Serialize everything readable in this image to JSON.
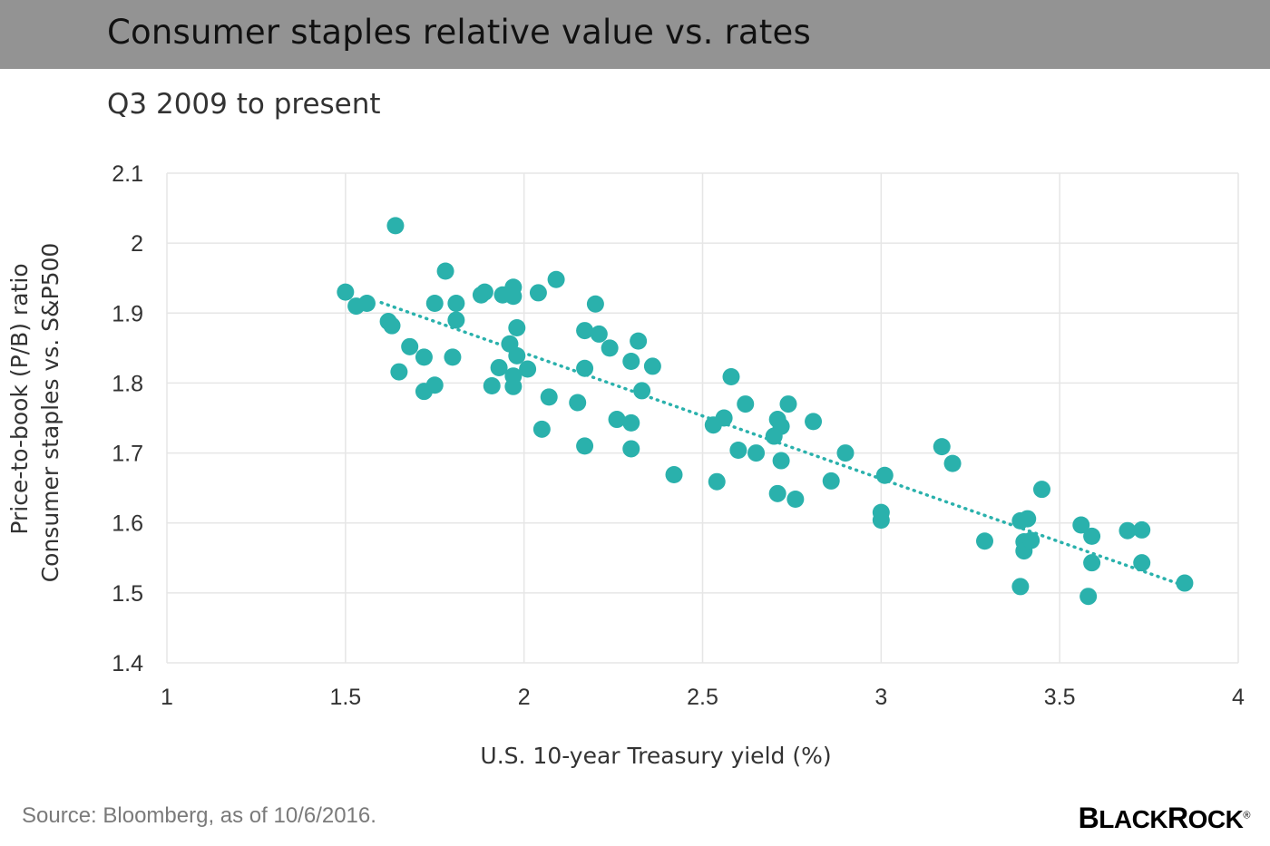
{
  "header": {
    "title": "Consumer staples relative value vs. rates",
    "subtitle": "Q3 2009 to present"
  },
  "footer": {
    "source": "Source: Bloomberg, as of 10/6/2016.",
    "brand": "BlackRock",
    "brand_display": {
      "first": "B",
      "rest": "LACK",
      "second": "R",
      "tail": "OCK",
      "mark": "®"
    }
  },
  "colors": {
    "marker": "#2ab1ac",
    "trendline": "#2ab1ac",
    "header_bar": "#939393",
    "grid": "#e6e6e6"
  },
  "chart_data": {
    "type": "scatter",
    "title": "",
    "xlabel": "U.S. 10-year Treasury yield (%)",
    "ylabel": [
      "Price-to-book (P/B) ratio",
      "Consumer staples vs. S&P500"
    ],
    "xlim": [
      1,
      4
    ],
    "ylim": [
      1.4,
      2.1
    ],
    "x_ticks": [
      1,
      1.5,
      2,
      2.5,
      3,
      3.5,
      4
    ],
    "x_tick_labels": [
      "1",
      "1.5",
      "2",
      "2.5",
      "3",
      "3.5",
      "4"
    ],
    "y_ticks": [
      1.4,
      1.5,
      1.6,
      1.7,
      1.8,
      1.9,
      2.0,
      2.1
    ],
    "y_tick_labels": [
      "1.4",
      "1.5",
      "1.6",
      "1.7",
      "1.8",
      "1.9",
      "2",
      "2.1"
    ],
    "grid": true,
    "trendline": {
      "style": "dotted",
      "x": [
        1.6,
        3.85
      ],
      "y": [
        1.915,
        1.51
      ]
    },
    "points": [
      [
        1.5,
        1.93
      ],
      [
        1.53,
        1.91
      ],
      [
        1.56,
        1.914
      ],
      [
        1.62,
        1.888
      ],
      [
        1.63,
        1.882
      ],
      [
        1.64,
        2.025
      ],
      [
        1.65,
        1.816
      ],
      [
        1.68,
        1.852
      ],
      [
        1.72,
        1.837
      ],
      [
        1.72,
        1.788
      ],
      [
        1.75,
        1.914
      ],
      [
        1.75,
        1.797
      ],
      [
        1.78,
        1.96
      ],
      [
        1.8,
        1.837
      ],
      [
        1.81,
        1.914
      ],
      [
        1.81,
        1.89
      ],
      [
        1.88,
        1.926
      ],
      [
        1.89,
        1.93
      ],
      [
        1.91,
        1.796
      ],
      [
        1.93,
        1.822
      ],
      [
        1.94,
        1.926
      ],
      [
        1.96,
        1.856
      ],
      [
        1.97,
        1.937
      ],
      [
        1.97,
        1.924
      ],
      [
        1.97,
        1.81
      ],
      [
        1.97,
        1.795
      ],
      [
        1.98,
        1.879
      ],
      [
        1.98,
        1.839
      ],
      [
        2.01,
        1.82
      ],
      [
        2.04,
        1.929
      ],
      [
        2.05,
        1.734
      ],
      [
        2.07,
        1.78
      ],
      [
        2.09,
        1.948
      ],
      [
        2.15,
        1.772
      ],
      [
        2.17,
        1.875
      ],
      [
        2.17,
        1.821
      ],
      [
        2.17,
        1.71
      ],
      [
        2.2,
        1.913
      ],
      [
        2.21,
        1.87
      ],
      [
        2.24,
        1.85
      ],
      [
        2.26,
        1.748
      ],
      [
        2.3,
        1.831
      ],
      [
        2.3,
        1.743
      ],
      [
        2.3,
        1.706
      ],
      [
        2.32,
        1.86
      ],
      [
        2.33,
        1.789
      ],
      [
        2.36,
        1.824
      ],
      [
        2.42,
        1.669
      ],
      [
        2.53,
        1.74
      ],
      [
        2.54,
        1.659
      ],
      [
        2.56,
        1.75
      ],
      [
        2.58,
        1.809
      ],
      [
        2.6,
        1.704
      ],
      [
        2.62,
        1.77
      ],
      [
        2.65,
        1.7
      ],
      [
        2.7,
        1.724
      ],
      [
        2.71,
        1.748
      ],
      [
        2.71,
        1.642
      ],
      [
        2.72,
        1.738
      ],
      [
        2.72,
        1.689
      ],
      [
        2.74,
        1.77
      ],
      [
        2.76,
        1.634
      ],
      [
        2.81,
        1.745
      ],
      [
        2.86,
        1.66
      ],
      [
        2.9,
        1.7
      ],
      [
        3.0,
        1.615
      ],
      [
        3.0,
        1.604
      ],
      [
        3.01,
        1.668
      ],
      [
        3.17,
        1.709
      ],
      [
        3.2,
        1.685
      ],
      [
        3.29,
        1.574
      ],
      [
        3.39,
        1.603
      ],
      [
        3.39,
        1.509
      ],
      [
        3.4,
        1.573
      ],
      [
        3.4,
        1.56
      ],
      [
        3.41,
        1.606
      ],
      [
        3.42,
        1.575
      ],
      [
        3.45,
        1.648
      ],
      [
        3.56,
        1.597
      ],
      [
        3.58,
        1.495
      ],
      [
        3.59,
        1.581
      ],
      [
        3.59,
        1.543
      ],
      [
        3.69,
        1.589
      ],
      [
        3.73,
        1.59
      ],
      [
        3.73,
        1.543
      ],
      [
        3.85,
        1.514
      ]
    ]
  }
}
